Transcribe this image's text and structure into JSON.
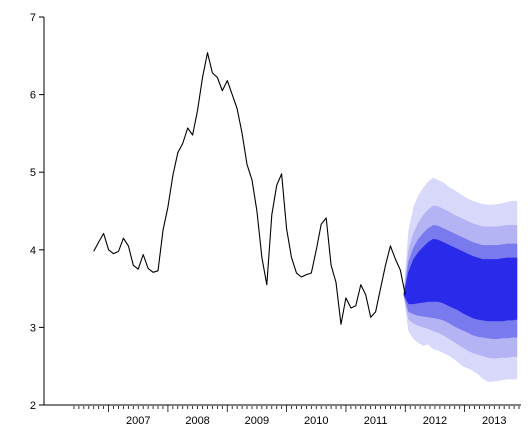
{
  "chart_data": {
    "type": "line",
    "title": "",
    "xlabel": "",
    "ylabel": "",
    "xlim": [
      2006.35,
      2013.95
    ],
    "ylim": [
      2,
      7
    ],
    "yticks": [
      2,
      3,
      4,
      5,
      6,
      7
    ],
    "year_labels": [
      "2007",
      "2008",
      "2009",
      "2010",
      "2011",
      "2012",
      "2013"
    ],
    "grid": false,
    "legend": "none",
    "colors": {
      "history_line": "#000000",
      "fan_bands": [
        "#d8d8fb",
        "#b4b4f5",
        "#7a7aef",
        "#2a2aea"
      ]
    },
    "series": [
      {
        "type": "line",
        "x_start": 2006.75,
        "step": 0.08333,
        "values": [
          3.98,
          4.1,
          4.21,
          4.0,
          3.95,
          3.98,
          4.15,
          4.05,
          3.8,
          3.75,
          3.94,
          3.76,
          3.71,
          3.73,
          4.25,
          4.55,
          4.96,
          5.25,
          5.37,
          5.57,
          5.48,
          5.8,
          6.22,
          6.54,
          6.28,
          6.22,
          6.05,
          6.18,
          6.0,
          5.82,
          5.5,
          5.1,
          4.9,
          4.5,
          3.9,
          3.55,
          4.45,
          4.83,
          4.98,
          4.27,
          3.9,
          3.7,
          3.65,
          3.68,
          3.7,
          4.0,
          4.33,
          4.41,
          3.8,
          3.58,
          3.04,
          3.38,
          3.25,
          3.28,
          3.55,
          3.42,
          3.13,
          3.2,
          3.5,
          3.8,
          4.05,
          3.88,
          3.74,
          3.42
        ]
      }
    ],
    "forecast": {
      "x_start": 2011.97,
      "step": 0.08333,
      "median": [
        3.42,
        3.55,
        3.65,
        3.72,
        3.78,
        3.82,
        3.84,
        3.85,
        3.84,
        3.82,
        3.8,
        3.78,
        3.76,
        3.74,
        3.72,
        3.71,
        3.7,
        3.7,
        3.7,
        3.7,
        3.7,
        3.7,
        3.7,
        3.7
      ],
      "bands": [
        {
          "upper": [
            3.42,
            4.25,
            4.55,
            4.7,
            4.8,
            4.88,
            4.93,
            4.9,
            4.87,
            4.82,
            4.78,
            4.74,
            4.7,
            4.66,
            4.63,
            4.61,
            4.59,
            4.58,
            4.58,
            4.59,
            4.6,
            4.62,
            4.63,
            4.63
          ],
          "lower": [
            3.42,
            2.95,
            2.85,
            2.8,
            2.76,
            2.78,
            2.72,
            2.7,
            2.67,
            2.64,
            2.6,
            2.55,
            2.5,
            2.47,
            2.44,
            2.4,
            2.34,
            2.3,
            2.3,
            2.31,
            2.32,
            2.33,
            2.33,
            2.33
          ]
        },
        {
          "upper": [
            3.42,
            4.0,
            4.22,
            4.35,
            4.45,
            4.52,
            4.57,
            4.56,
            4.53,
            4.5,
            4.46,
            4.43,
            4.4,
            4.37,
            4.34,
            4.32,
            4.3,
            4.3,
            4.3,
            4.3,
            4.31,
            4.32,
            4.32,
            4.32
          ],
          "lower": [
            3.42,
            3.1,
            3.05,
            3.02,
            3.0,
            2.98,
            2.95,
            2.93,
            2.9,
            2.86,
            2.82,
            2.78,
            2.74,
            2.7,
            2.67,
            2.65,
            2.63,
            2.61,
            2.6,
            2.6,
            2.61,
            2.61,
            2.62,
            2.62
          ]
        },
        {
          "upper": [
            3.42,
            3.85,
            4.03,
            4.14,
            4.22,
            4.28,
            4.32,
            4.31,
            4.28,
            4.25,
            4.22,
            4.19,
            4.16,
            4.13,
            4.1,
            4.08,
            4.06,
            4.06,
            4.06,
            4.06,
            4.07,
            4.08,
            4.08,
            4.08
          ],
          "lower": [
            3.42,
            3.2,
            3.17,
            3.15,
            3.14,
            3.13,
            3.12,
            3.11,
            3.09,
            3.06,
            3.02,
            2.99,
            2.96,
            2.93,
            2.9,
            2.88,
            2.87,
            2.86,
            2.85,
            2.85,
            2.86,
            2.86,
            2.87,
            2.87
          ]
        },
        {
          "upper": [
            3.42,
            3.72,
            3.88,
            3.97,
            4.04,
            4.1,
            4.14,
            4.13,
            4.1,
            4.07,
            4.04,
            4.01,
            3.98,
            3.95,
            3.92,
            3.9,
            3.88,
            3.88,
            3.88,
            3.88,
            3.89,
            3.9,
            3.9,
            3.9
          ],
          "lower": [
            3.42,
            3.3,
            3.3,
            3.31,
            3.32,
            3.33,
            3.33,
            3.33,
            3.31,
            3.28,
            3.25,
            3.22,
            3.18,
            3.15,
            3.12,
            3.1,
            3.09,
            3.08,
            3.08,
            3.08,
            3.08,
            3.09,
            3.09,
            3.1
          ]
        }
      ]
    }
  }
}
